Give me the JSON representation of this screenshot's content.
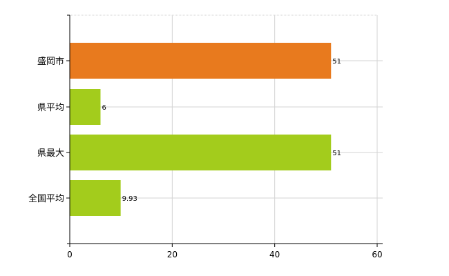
{
  "chart_data": {
    "type": "bar",
    "orientation": "horizontal",
    "categories": [
      "盛岡市",
      "県平均",
      "県最大",
      "全国平均"
    ],
    "values": [
      51,
      6,
      51,
      9.93
    ],
    "data_labels": [
      "51",
      "6",
      "51",
      "9.93"
    ],
    "bar_colors": [
      "#e87a1e",
      "#a3cc1c",
      "#a3cc1c",
      "#a3cc1c"
    ],
    "xlim": [
      0,
      60
    ],
    "xticks": [
      0,
      20,
      40,
      60
    ],
    "grid": true,
    "title": "",
    "xlabel": "",
    "ylabel": ""
  }
}
